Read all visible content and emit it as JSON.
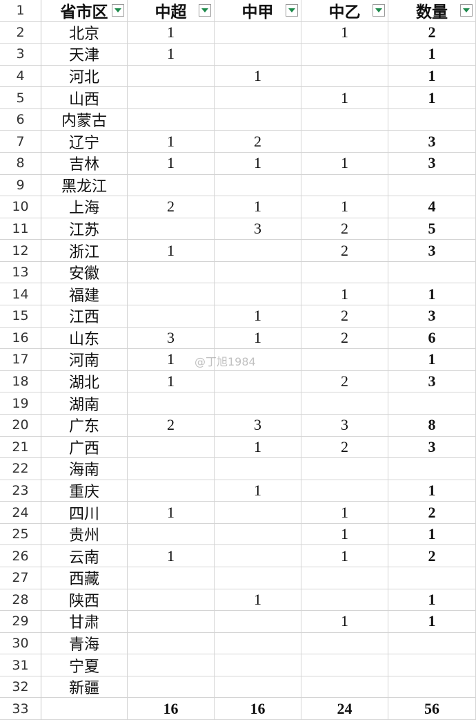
{
  "row_numbers": [
    1,
    2,
    3,
    4,
    5,
    6,
    7,
    8,
    9,
    10,
    11,
    12,
    13,
    14,
    15,
    16,
    17,
    18,
    19,
    20,
    21,
    22,
    23,
    24,
    25,
    26,
    27,
    28,
    29,
    30,
    31,
    32,
    33
  ],
  "table": {
    "header": [
      "省市区",
      "中超",
      "中甲",
      "中乙",
      "数量"
    ],
    "rows": [
      [
        "北京",
        1,
        null,
        1,
        2
      ],
      [
        "天津",
        1,
        null,
        null,
        1
      ],
      [
        "河北",
        null,
        1,
        null,
        1
      ],
      [
        "山西",
        null,
        null,
        1,
        1
      ],
      [
        "内蒙古",
        null,
        null,
        null,
        null
      ],
      [
        "辽宁",
        1,
        2,
        null,
        3
      ],
      [
        "吉林",
        1,
        1,
        1,
        3
      ],
      [
        "黑龙江",
        null,
        null,
        null,
        null
      ],
      [
        "上海",
        2,
        1,
        1,
        4
      ],
      [
        "江苏",
        null,
        3,
        2,
        5
      ],
      [
        "浙江",
        1,
        null,
        2,
        3
      ],
      [
        "安徽",
        null,
        null,
        null,
        null
      ],
      [
        "福建",
        null,
        null,
        1,
        1
      ],
      [
        "江西",
        null,
        1,
        2,
        3
      ],
      [
        "山东",
        3,
        1,
        2,
        6
      ],
      [
        "河南",
        1,
        null,
        null,
        1
      ],
      [
        "湖北",
        1,
        null,
        2,
        3
      ],
      [
        "湖南",
        null,
        null,
        null,
        null
      ],
      [
        "广东",
        2,
        3,
        3,
        8
      ],
      [
        "广西",
        null,
        1,
        2,
        3
      ],
      [
        "海南",
        null,
        null,
        null,
        null
      ],
      [
        "重庆",
        null,
        1,
        null,
        1
      ],
      [
        "四川",
        1,
        null,
        1,
        2
      ],
      [
        "贵州",
        null,
        null,
        1,
        1
      ],
      [
        "云南",
        1,
        null,
        1,
        2
      ],
      [
        "西藏",
        null,
        null,
        null,
        null
      ],
      [
        "陕西",
        null,
        1,
        null,
        1
      ],
      [
        "甘肃",
        null,
        null,
        1,
        1
      ],
      [
        "青海",
        null,
        null,
        null,
        null
      ],
      [
        "宁夏",
        null,
        null,
        null,
        null
      ],
      [
        "新疆",
        null,
        null,
        null,
        null
      ]
    ],
    "totals": [
      null,
      16,
      16,
      24,
      56
    ]
  },
  "watermark": "@丁旭1984"
}
